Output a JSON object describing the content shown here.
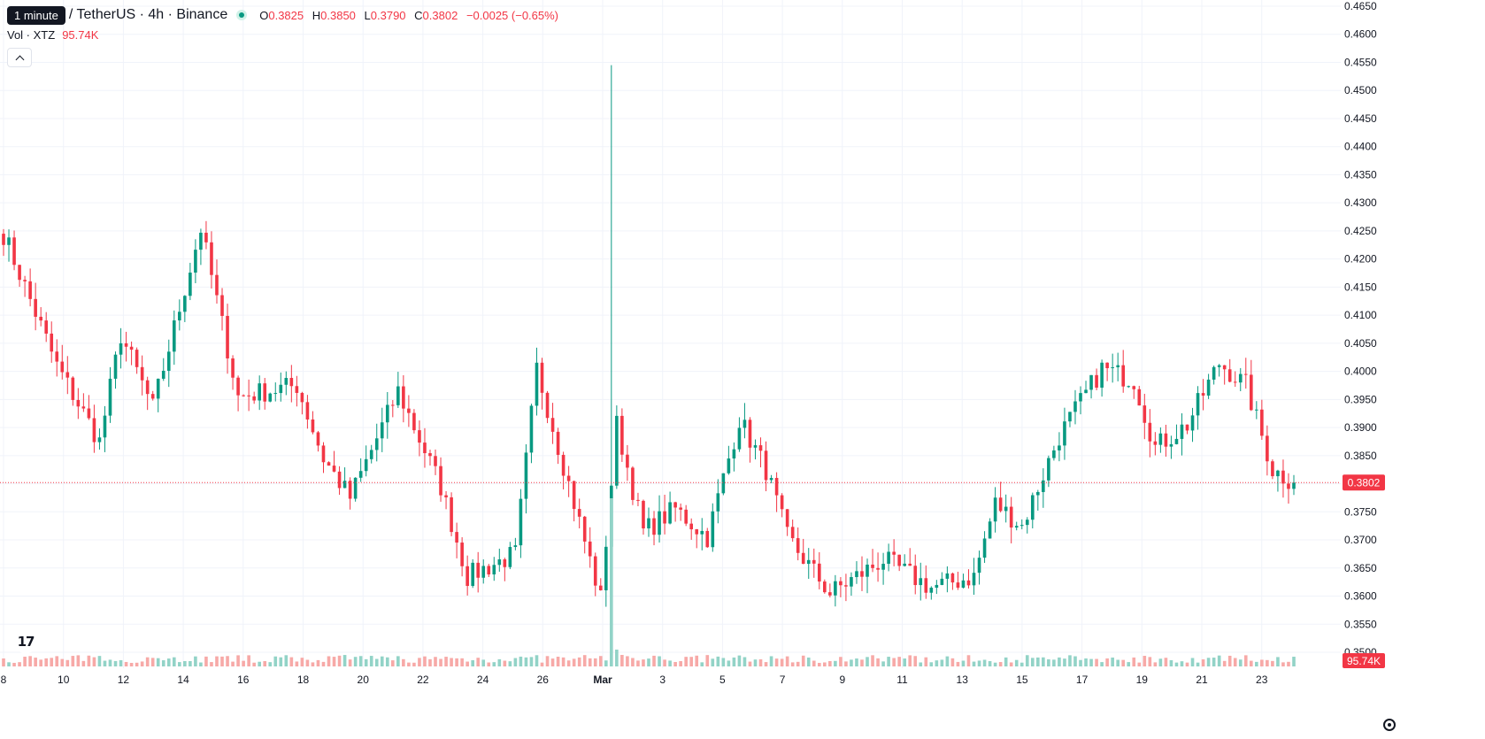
{
  "legend": {
    "tooltip": "1 minute",
    "symbol_title": "/ TetherUS · 4h · Binance",
    "open_label": "O",
    "open_value": "0.3825",
    "high_label": "H",
    "high_value": "0.3850",
    "low_label": "L",
    "low_value": "0.3790",
    "close_label": "C",
    "close_value": "0.3802",
    "change": "−0.0025 (−0.65%)"
  },
  "volume_legend": {
    "label": "Vol · XTZ",
    "value": "95.74K"
  },
  "colors": {
    "up": "#089981",
    "down": "#f23645",
    "up_volume": "#92d3c7",
    "down_volume": "#f7a9a7",
    "grid": "#f0f3fa",
    "axis_text": "#131722"
  },
  "icons": {
    "logo": "tradingview-logo-icon",
    "settings": "settings-icon",
    "collapse": "chevron-up-icon"
  },
  "logo_text": "17",
  "chart_data": {
    "type": "candlestick",
    "y_axis": {
      "range": [
        0.35,
        0.465
      ],
      "ticks": [
        "0.4650",
        "0.4600",
        "0.4550",
        "0.4500",
        "0.4450",
        "0.4400",
        "0.4350",
        "0.4300",
        "0.4250",
        "0.4200",
        "0.4150",
        "0.4100",
        "0.4050",
        "0.4000",
        "0.3950",
        "0.3900",
        "0.3850",
        "0.3800",
        "0.3750",
        "0.3700",
        "0.3650",
        "0.3600",
        "0.3550",
        "0.3500"
      ]
    },
    "x_axis": {
      "labels": [
        "8",
        "10",
        "12",
        "14",
        "16",
        "18",
        "20",
        "22",
        "24",
        "26",
        "Mar",
        "3",
        "5",
        "7",
        "9",
        "11",
        "13",
        "15",
        "17",
        "19",
        "21",
        "23"
      ],
      "bold_label": "Mar"
    },
    "last_price": "0.3802",
    "last_volume": "95.74K",
    "grid": true,
    "anchors": [
      {
        "i": 0,
        "c": 0.4245
      },
      {
        "i": 10,
        "c": 0.401
      },
      {
        "i": 18,
        "c": 0.3875
      },
      {
        "i": 22,
        "c": 0.4065
      },
      {
        "i": 28,
        "c": 0.3935
      },
      {
        "i": 37,
        "c": 0.4255
      },
      {
        "i": 44,
        "c": 0.3955
      },
      {
        "i": 55,
        "c": 0.3975
      },
      {
        "i": 60,
        "c": 0.3845
      },
      {
        "i": 65,
        "c": 0.3775
      },
      {
        "i": 74,
        "c": 0.3965
      },
      {
        "i": 82,
        "c": 0.3795
      },
      {
        "i": 87,
        "c": 0.3635
      },
      {
        "i": 96,
        "c": 0.3675
      },
      {
        "i": 100,
        "c": 0.4005
      },
      {
        "i": 112,
        "c": 0.3595
      },
      {
        "i": 115,
        "c": 0.3905
      },
      {
        "i": 120,
        "c": 0.3715
      },
      {
        "i": 126,
        "c": 0.3755
      },
      {
        "i": 132,
        "c": 0.3705
      },
      {
        "i": 138,
        "c": 0.3915
      },
      {
        "i": 143,
        "c": 0.3825
      },
      {
        "i": 147,
        "c": 0.3705
      },
      {
        "i": 155,
        "c": 0.3605
      },
      {
        "i": 165,
        "c": 0.3665
      },
      {
        "i": 174,
        "c": 0.3615
      },
      {
        "i": 182,
        "c": 0.3635
      },
      {
        "i": 186,
        "c": 0.3765
      },
      {
        "i": 191,
        "c": 0.3725
      },
      {
        "i": 198,
        "c": 0.3885
      },
      {
        "i": 206,
        "c": 0.4005
      },
      {
        "i": 212,
        "c": 0.3985
      },
      {
        "i": 216,
        "c": 0.3865
      },
      {
        "i": 222,
        "c": 0.3905
      },
      {
        "i": 228,
        "c": 0.4015
      },
      {
        "i": 233,
        "c": 0.3975
      },
      {
        "i": 238,
        "c": 0.3825
      },
      {
        "i": 242,
        "c": 0.3802
      }
    ],
    "spike": {
      "i": 114,
      "h": 0.4545,
      "l": 0.3655
    },
    "volume_range": [
      0,
      4
    ]
  }
}
